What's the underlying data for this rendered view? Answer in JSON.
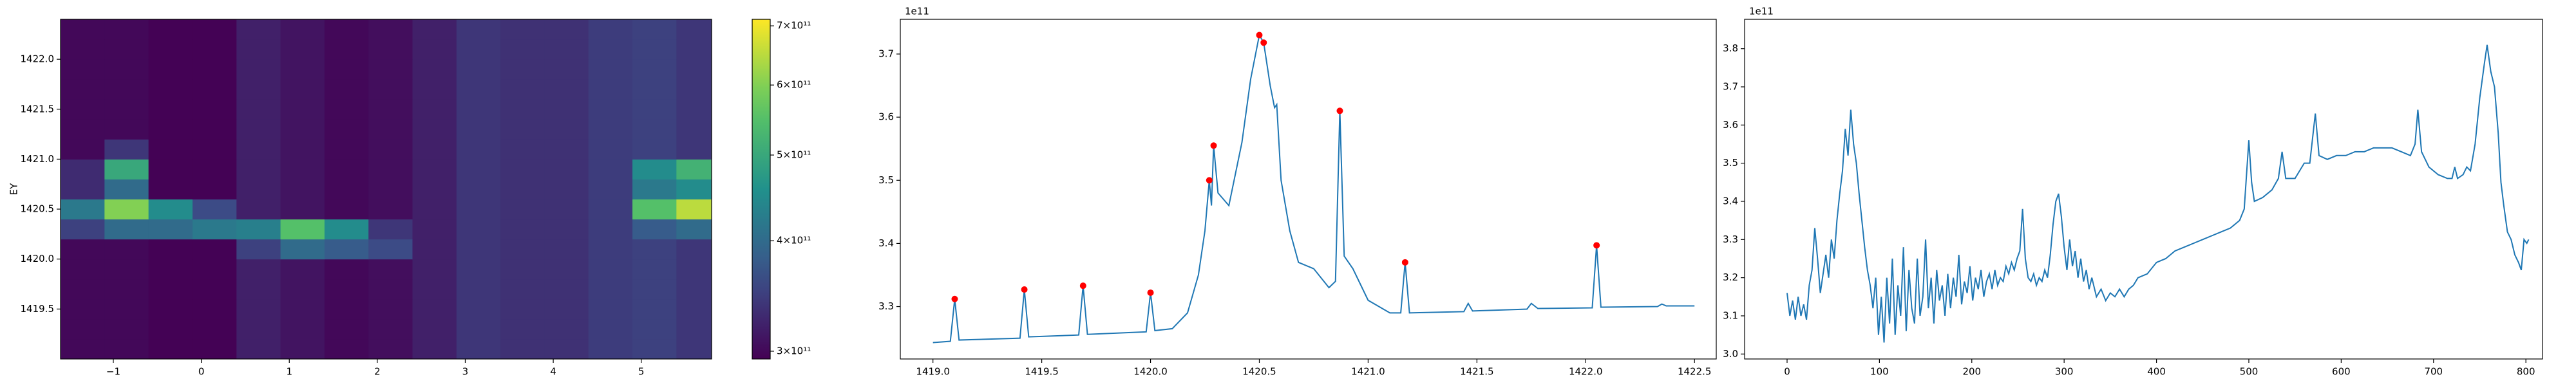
{
  "chart_data": [
    {
      "type": "heatmap",
      "ylabel": "EY",
      "colormap": "viridis",
      "x": [
        -1.35,
        -0.85,
        -0.35,
        0.15,
        0.65,
        1.15,
        1.65,
        2.15,
        2.65,
        3.15,
        3.65,
        4.15,
        4.65,
        5.15,
        5.65
      ],
      "y": [
        1419.1,
        1419.3,
        1419.5,
        1419.7,
        1419.9,
        1420.1,
        1420.3,
        1420.5,
        1420.7,
        1420.9,
        1421.1,
        1421.3,
        1421.5,
        1421.7,
        1421.9,
        1422.1,
        1422.3
      ],
      "z": [
        [
          300000000000.0,
          300000000000.0,
          295000000000.0,
          295000000000.0,
          320000000000.0,
          310000000000.0,
          300000000000.0,
          305000000000.0,
          320000000000.0,
          340000000000.0,
          335000000000.0,
          335000000000.0,
          345000000000.0,
          350000000000.0,
          340000000000.0
        ],
        [
          300000000000.0,
          300000000000.0,
          295000000000.0,
          295000000000.0,
          320000000000.0,
          310000000000.0,
          300000000000.0,
          305000000000.0,
          320000000000.0,
          340000000000.0,
          335000000000.0,
          335000000000.0,
          345000000000.0,
          350000000000.0,
          340000000000.0
        ],
        [
          300000000000.0,
          300000000000.0,
          295000000000.0,
          295000000000.0,
          320000000000.0,
          310000000000.0,
          300000000000.0,
          305000000000.0,
          320000000000.0,
          340000000000.0,
          335000000000.0,
          335000000000.0,
          345000000000.0,
          350000000000.0,
          340000000000.0
        ],
        [
          300000000000.0,
          300000000000.0,
          295000000000.0,
          295000000000.0,
          320000000000.0,
          310000000000.0,
          300000000000.0,
          305000000000.0,
          320000000000.0,
          340000000000.0,
          335000000000.0,
          335000000000.0,
          345000000000.0,
          350000000000.0,
          340000000000.0
        ],
        [
          300000000000.0,
          300000000000.0,
          295000000000.0,
          295000000000.0,
          320000000000.0,
          310000000000.0,
          300000000000.0,
          305000000000.0,
          320000000000.0,
          340000000000.0,
          335000000000.0,
          335000000000.0,
          345000000000.0,
          350000000000.0,
          340000000000.0
        ],
        [
          300000000000.0,
          300000000000.0,
          295000000000.0,
          295000000000.0,
          350000000000.0,
          400000000000.0,
          380000000000.0,
          360000000000.0,
          320000000000.0,
          340000000000.0,
          335000000000.0,
          335000000000.0,
          345000000000.0,
          350000000000.0,
          340000000000.0
        ],
        [
          350000000000.0,
          400000000000.0,
          400000000000.0,
          420000000000.0,
          430000000000.0,
          550000000000.0,
          450000000000.0,
          340000000000.0,
          320000000000.0,
          340000000000.0,
          335000000000.0,
          335000000000.0,
          345000000000.0,
          380000000000.0,
          400000000000.0
        ],
        [
          420000000000.0,
          600000000000.0,
          450000000000.0,
          360000000000.0,
          320000000000.0,
          310000000000.0,
          300000000000.0,
          305000000000.0,
          320000000000.0,
          340000000000.0,
          335000000000.0,
          335000000000.0,
          345000000000.0,
          550000000000.0,
          650000000000.0
        ],
        [
          330000000000.0,
          400000000000.0,
          295000000000.0,
          295000000000.0,
          320000000000.0,
          310000000000.0,
          300000000000.0,
          305000000000.0,
          320000000000.0,
          340000000000.0,
          335000000000.0,
          335000000000.0,
          345000000000.0,
          420000000000.0,
          450000000000.0
        ],
        [
          330000000000.0,
          500000000000.0,
          295000000000.0,
          295000000000.0,
          320000000000.0,
          310000000000.0,
          300000000000.0,
          305000000000.0,
          320000000000.0,
          340000000000.0,
          335000000000.0,
          335000000000.0,
          345000000000.0,
          450000000000.0,
          520000000000.0
        ],
        [
          300000000000.0,
          340000000000.0,
          295000000000.0,
          295000000000.0,
          320000000000.0,
          310000000000.0,
          300000000000.0,
          305000000000.0,
          320000000000.0,
          340000000000.0,
          335000000000.0,
          335000000000.0,
          345000000000.0,
          350000000000.0,
          340000000000.0
        ],
        [
          300000000000.0,
          300000000000.0,
          295000000000.0,
          295000000000.0,
          320000000000.0,
          310000000000.0,
          300000000000.0,
          305000000000.0,
          320000000000.0,
          340000000000.0,
          335000000000.0,
          335000000000.0,
          345000000000.0,
          350000000000.0,
          340000000000.0
        ],
        [
          300000000000.0,
          300000000000.0,
          295000000000.0,
          295000000000.0,
          320000000000.0,
          310000000000.0,
          300000000000.0,
          305000000000.0,
          320000000000.0,
          340000000000.0,
          335000000000.0,
          335000000000.0,
          345000000000.0,
          350000000000.0,
          340000000000.0
        ],
        [
          300000000000.0,
          300000000000.0,
          295000000000.0,
          295000000000.0,
          320000000000.0,
          310000000000.0,
          300000000000.0,
          305000000000.0,
          320000000000.0,
          340000000000.0,
          335000000000.0,
          335000000000.0,
          345000000000.0,
          350000000000.0,
          340000000000.0
        ],
        [
          300000000000.0,
          300000000000.0,
          295000000000.0,
          295000000000.0,
          320000000000.0,
          310000000000.0,
          300000000000.0,
          305000000000.0,
          320000000000.0,
          340000000000.0,
          335000000000.0,
          335000000000.0,
          345000000000.0,
          350000000000.0,
          340000000000.0
        ],
        [
          300000000000.0,
          300000000000.0,
          295000000000.0,
          295000000000.0,
          320000000000.0,
          310000000000.0,
          300000000000.0,
          305000000000.0,
          320000000000.0,
          340000000000.0,
          335000000000.0,
          335000000000.0,
          345000000000.0,
          350000000000.0,
          340000000000.0
        ],
        [
          300000000000.0,
          300000000000.0,
          295000000000.0,
          295000000000.0,
          320000000000.0,
          310000000000.0,
          300000000000.0,
          305000000000.0,
          320000000000.0,
          340000000000.0,
          335000000000.0,
          335000000000.0,
          345000000000.0,
          350000000000.0,
          340000000000.0
        ]
      ],
      "xlim": [
        -1.6,
        5.8
      ],
      "ylim": [
        1419.0,
        1422.4
      ],
      "xticks": [
        {
          "value": -1,
          "label": "−1"
        },
        0,
        1,
        2,
        3,
        4,
        5
      ],
      "yticks": [
        1419.5,
        {
          "value": 1420,
          "label": "1420.0"
        },
        1420.5,
        {
          "value": 1421,
          "label": "1421.0"
        },
        1421.5,
        {
          "value": 1422,
          "label": "1422.0"
        }
      ],
      "colorbar": {
        "scale": "log",
        "lim": [
          294000000000.0,
          712000000000.0
        ],
        "ticks": [
          {
            "value": 300000000000.0,
            "label": "3×10¹¹"
          },
          {
            "value": 400000000000.0,
            "label": "4×10¹¹"
          },
          {
            "value": 500000000000.0,
            "label": "5×10¹¹"
          },
          {
            "value": 600000000000.0,
            "label": "6×10¹¹"
          },
          {
            "value": 700000000000.0,
            "label": "7×10¹¹"
          }
        ]
      }
    },
    {
      "type": "line",
      "offset_label": "1e11",
      "x": [
        1419.0,
        1419.08,
        1419.1,
        1419.12,
        1419.4,
        1419.42,
        1419.44,
        1419.67,
        1419.69,
        1419.71,
        1419.98,
        1420.0,
        1420.02,
        1420.1,
        1420.17,
        1420.22,
        1420.25,
        1420.27,
        1420.28,
        1420.29,
        1420.31,
        1420.36,
        1420.42,
        1420.46,
        1420.5,
        1420.52,
        1420.55,
        1420.57,
        1420.58,
        1420.6,
        1420.64,
        1420.68,
        1420.75,
        1420.82,
        1420.85,
        1420.87,
        1420.89,
        1420.93,
        1421.0,
        1421.1,
        1421.15,
        1421.17,
        1421.19,
        1421.44,
        1421.46,
        1421.48,
        1421.73,
        1421.75,
        1421.78,
        1422.03,
        1422.05,
        1422.07,
        1422.33,
        1422.35,
        1422.37,
        1422.5
      ],
      "series": [
        {
          "color": "#1f77b4",
          "values": [
            3.243,
            3.245,
            3.312,
            3.247,
            3.25,
            3.327,
            3.252,
            3.255,
            3.333,
            3.256,
            3.26,
            3.322,
            3.262,
            3.265,
            3.29,
            3.35,
            3.42,
            3.5,
            3.46,
            3.555,
            3.48,
            3.46,
            3.56,
            3.66,
            3.73,
            3.718,
            3.65,
            3.615,
            3.62,
            3.5,
            3.42,
            3.37,
            3.36,
            3.33,
            3.34,
            3.61,
            3.38,
            3.36,
            3.31,
            3.29,
            3.29,
            3.37,
            3.29,
            3.292,
            3.305,
            3.293,
            3.296,
            3.305,
            3.297,
            3.298,
            3.397,
            3.299,
            3.3,
            3.304,
            3.301,
            3.301
          ]
        }
      ],
      "peaks": {
        "color": "red",
        "x": [
          1419.1,
          1419.42,
          1419.69,
          1420.0,
          1420.27,
          1420.29,
          1420.5,
          1420.52,
          1420.87,
          1421.17,
          1422.05
        ],
        "values": [
          3.312,
          3.327,
          3.333,
          3.322,
          3.5,
          3.555,
          3.73,
          3.718,
          3.61,
          3.37,
          3.397
        ]
      },
      "xlim": [
        1418.85,
        1422.6
      ],
      "ylim": [
        3.217,
        3.755
      ],
      "xticks": [
        {
          "value": 1419,
          "label": "1419.0"
        },
        1419.5,
        {
          "value": 1420,
          "label": "1420.0"
        },
        1420.5,
        {
          "value": 1421,
          "label": "1421.0"
        },
        1421.5,
        {
          "value": 1422,
          "label": "1422.0"
        },
        1422.5
      ],
      "yticks": [
        3.3,
        3.4,
        3.5,
        3.6,
        3.7
      ]
    },
    {
      "type": "line",
      "offset_label": "1e11",
      "x": [
        0,
        3,
        6,
        9,
        12,
        15,
        18,
        21,
        24,
        27,
        30,
        33,
        36,
        39,
        42,
        45,
        48,
        51,
        54,
        57,
        60,
        63,
        66,
        69,
        72,
        75,
        78,
        81,
        84,
        87,
        90,
        93,
        96,
        99,
        102,
        105,
        108,
        111,
        114,
        117,
        120,
        123,
        126,
        129,
        132,
        135,
        138,
        141,
        144,
        147,
        150,
        153,
        156,
        159,
        162,
        165,
        168,
        171,
        174,
        177,
        180,
        183,
        186,
        189,
        192,
        195,
        198,
        201,
        204,
        207,
        210,
        213,
        216,
        219,
        222,
        225,
        228,
        231,
        234,
        237,
        240,
        243,
        246,
        249,
        252,
        255,
        258,
        261,
        264,
        267,
        270,
        273,
        276,
        279,
        282,
        285,
        288,
        291,
        294,
        297,
        300,
        303,
        306,
        309,
        312,
        315,
        318,
        321,
        324,
        327,
        330,
        335,
        340,
        345,
        350,
        355,
        360,
        365,
        370,
        375,
        380,
        390,
        400,
        410,
        420,
        430,
        440,
        450,
        460,
        470,
        480,
        490,
        495,
        500,
        503,
        506,
        515,
        525,
        532,
        536,
        540,
        550,
        560,
        566,
        572,
        576,
        585,
        595,
        605,
        615,
        625,
        635,
        645,
        655,
        665,
        675,
        680,
        683,
        687,
        695,
        705,
        715,
        720,
        723,
        726,
        732,
        736,
        740,
        745,
        750,
        755,
        758,
        762,
        766,
        770,
        773,
        776,
        780,
        784,
        788,
        792,
        795,
        798,
        801,
        803
      ],
      "series": [
        {
          "color": "#1f77b4",
          "values": [
            3.16,
            3.1,
            3.14,
            3.09,
            3.15,
            3.1,
            3.13,
            3.09,
            3.18,
            3.22,
            3.33,
            3.25,
            3.16,
            3.21,
            3.26,
            3.2,
            3.3,
            3.25,
            3.35,
            3.42,
            3.48,
            3.59,
            3.52,
            3.64,
            3.55,
            3.5,
            3.42,
            3.35,
            3.28,
            3.22,
            3.18,
            3.12,
            3.2,
            3.05,
            3.15,
            3.03,
            3.2,
            3.08,
            3.25,
            3.05,
            3.18,
            3.1,
            3.28,
            3.06,
            3.22,
            3.12,
            3.08,
            3.25,
            3.1,
            3.15,
            3.3,
            3.12,
            3.2,
            3.08,
            3.22,
            3.14,
            3.18,
            3.1,
            3.21,
            3.12,
            3.2,
            3.15,
            3.26,
            3.13,
            3.19,
            3.16,
            3.23,
            3.14,
            3.2,
            3.17,
            3.22,
            3.15,
            3.19,
            3.21,
            3.17,
            3.22,
            3.18,
            3.2,
            3.19,
            3.23,
            3.21,
            3.24,
            3.22,
            3.25,
            3.27,
            3.38,
            3.25,
            3.2,
            3.19,
            3.21,
            3.18,
            3.2,
            3.19,
            3.22,
            3.2,
            3.26,
            3.34,
            3.4,
            3.42,
            3.36,
            3.28,
            3.22,
            3.3,
            3.23,
            3.27,
            3.2,
            3.25,
            3.19,
            3.22,
            3.17,
            3.2,
            3.15,
            3.17,
            3.14,
            3.16,
            3.15,
            3.17,
            3.15,
            3.17,
            3.18,
            3.2,
            3.21,
            3.24,
            3.25,
            3.27,
            3.28,
            3.29,
            3.3,
            3.31,
            3.32,
            3.33,
            3.35,
            3.38,
            3.56,
            3.45,
            3.4,
            3.41,
            3.43,
            3.46,
            3.53,
            3.46,
            3.46,
            3.5,
            3.5,
            3.63,
            3.52,
            3.51,
            3.52,
            3.52,
            3.53,
            3.53,
            3.54,
            3.54,
            3.54,
            3.53,
            3.52,
            3.55,
            3.64,
            3.53,
            3.49,
            3.47,
            3.46,
            3.46,
            3.49,
            3.46,
            3.47,
            3.49,
            3.48,
            3.55,
            3.67,
            3.76,
            3.81,
            3.74,
            3.7,
            3.58,
            3.45,
            3.39,
            3.32,
            3.3,
            3.26,
            3.24,
            3.22,
            3.3,
            3.29,
            3.3
          ]
        }
      ],
      "xlim": [
        -46,
        818
      ],
      "ylim": [
        2.987,
        3.877
      ],
      "xticks": [
        0,
        100,
        200,
        300,
        400,
        500,
        600,
        700,
        800
      ],
      "yticks": [
        {
          "value": 3,
          "label": "3.0"
        },
        3.1,
        3.2,
        3.3,
        3.4,
        3.5,
        3.6,
        3.7,
        3.8
      ]
    }
  ]
}
